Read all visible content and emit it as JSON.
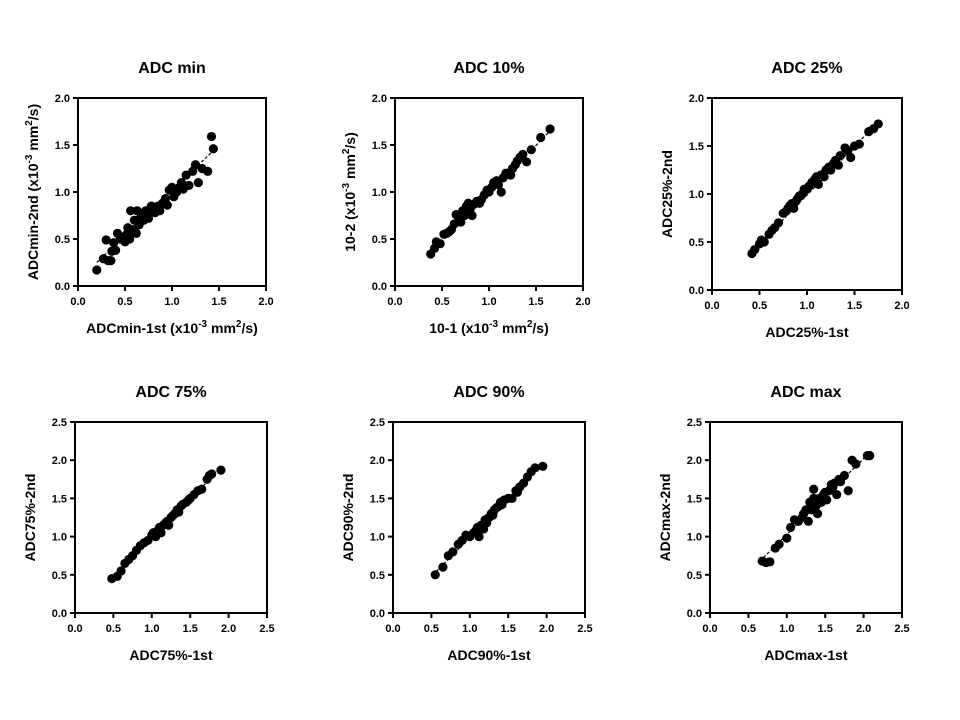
{
  "chart_data": [
    {
      "type": "scatter",
      "title": "ADC min",
      "xlabel": {
        "pre": "ADCmin-1st (x10",
        "sup": "-3",
        "mid": " mm",
        "sup2": "2",
        "post": "/s)"
      },
      "ylabel": {
        "pre": "ADCmin-2nd (x10",
        "sup": "-3",
        "mid": " mm",
        "sup2": "2",
        "post": "/s)"
      },
      "xlim": [
        0,
        2.0
      ],
      "ylim": [
        0,
        2.0
      ],
      "xticks": [
        "0.0",
        "0.5",
        "1.0",
        "1.5",
        "2.0"
      ],
      "yticks": [
        "0.0",
        "0.5",
        "1.0",
        "1.5",
        "2.0"
      ],
      "tick_values": [
        0,
        0.5,
        1.0,
        1.5,
        2.0
      ],
      "fit_line": [
        [
          0.2,
          0.25
        ],
        [
          1.45,
          1.45
        ]
      ],
      "points": [
        [
          0.2,
          0.17
        ],
        [
          0.27,
          0.29
        ],
        [
          0.3,
          0.49
        ],
        [
          0.32,
          0.27
        ],
        [
          0.35,
          0.27
        ],
        [
          0.36,
          0.37
        ],
        [
          0.38,
          0.46
        ],
        [
          0.4,
          0.38
        ],
        [
          0.42,
          0.56
        ],
        [
          0.45,
          0.5
        ],
        [
          0.47,
          0.52
        ],
        [
          0.5,
          0.47
        ],
        [
          0.52,
          0.55
        ],
        [
          0.53,
          0.62
        ],
        [
          0.55,
          0.5
        ],
        [
          0.56,
          0.8
        ],
        [
          0.58,
          0.6
        ],
        [
          0.6,
          0.7
        ],
        [
          0.6,
          0.58
        ],
        [
          0.62,
          0.56
        ],
        [
          0.63,
          0.8
        ],
        [
          0.65,
          0.65
        ],
        [
          0.67,
          0.73
        ],
        [
          0.7,
          0.7
        ],
        [
          0.72,
          0.8
        ],
        [
          0.73,
          0.77
        ],
        [
          0.75,
          0.72
        ],
        [
          0.78,
          0.85
        ],
        [
          0.8,
          0.82
        ],
        [
          0.82,
          0.78
        ],
        [
          0.85,
          0.85
        ],
        [
          0.87,
          0.8
        ],
        [
          0.9,
          0.88
        ],
        [
          0.93,
          0.93
        ],
        [
          0.95,
          0.86
        ],
        [
          0.97,
          1.02
        ],
        [
          1.0,
          1.05
        ],
        [
          1.02,
          0.95
        ],
        [
          1.05,
          1.0
        ],
        [
          1.08,
          1.05
        ],
        [
          1.1,
          1.1
        ],
        [
          1.12,
          1.03
        ],
        [
          1.15,
          1.18
        ],
        [
          1.18,
          1.07
        ],
        [
          1.22,
          1.22
        ],
        [
          1.25,
          1.29
        ],
        [
          1.28,
          1.1
        ],
        [
          1.32,
          1.25
        ],
        [
          1.38,
          1.22
        ],
        [
          1.42,
          1.59
        ],
        [
          1.44,
          1.46
        ]
      ]
    },
    {
      "type": "scatter",
      "title": "ADC 10%",
      "xlabel": {
        "pre": "10-1 (x10",
        "sup": "-3",
        "mid": " mm",
        "sup2": "2",
        "post": "/s)"
      },
      "ylabel": {
        "pre": "10-2 (x10",
        "sup": "-3",
        "mid": " mm",
        "sup2": "2",
        "post": "/s)"
      },
      "xlim": [
        0,
        2.0
      ],
      "ylim": [
        0,
        2.0
      ],
      "xticks": [
        "0.0",
        "0.5",
        "1.0",
        "1.5",
        "2.0"
      ],
      "yticks": [
        "0.0",
        "0.5",
        "1.0",
        "1.5",
        "2.0"
      ],
      "tick_values": [
        0,
        0.5,
        1.0,
        1.5,
        2.0
      ],
      "fit_line": [
        [
          0.38,
          0.35
        ],
        [
          1.65,
          1.65
        ]
      ],
      "points": [
        [
          0.38,
          0.34
        ],
        [
          0.42,
          0.4
        ],
        [
          0.44,
          0.47
        ],
        [
          0.48,
          0.45
        ],
        [
          0.52,
          0.55
        ],
        [
          0.55,
          0.56
        ],
        [
          0.58,
          0.58
        ],
        [
          0.6,
          0.6
        ],
        [
          0.63,
          0.66
        ],
        [
          0.65,
          0.76
        ],
        [
          0.68,
          0.72
        ],
        [
          0.7,
          0.68
        ],
        [
          0.72,
          0.8
        ],
        [
          0.74,
          0.75
        ],
        [
          0.76,
          0.85
        ],
        [
          0.78,
          0.88
        ],
        [
          0.8,
          0.82
        ],
        [
          0.82,
          0.75
        ],
        [
          0.84,
          0.87
        ],
        [
          0.87,
          0.9
        ],
        [
          0.9,
          0.88
        ],
        [
          0.92,
          0.92
        ],
        [
          0.95,
          0.97
        ],
        [
          0.98,
          1.02
        ],
        [
          1.0,
          1.0
        ],
        [
          1.03,
          1.05
        ],
        [
          1.05,
          1.1
        ],
        [
          1.08,
          1.12
        ],
        [
          1.1,
          1.08
        ],
        [
          1.13,
          1.0
        ],
        [
          1.15,
          1.15
        ],
        [
          1.18,
          1.2
        ],
        [
          1.2,
          1.2
        ],
        [
          1.23,
          1.18
        ],
        [
          1.25,
          1.25
        ],
        [
          1.28,
          1.29
        ],
        [
          1.3,
          1.33
        ],
        [
          1.33,
          1.37
        ],
        [
          1.36,
          1.4
        ],
        [
          1.4,
          1.32
        ],
        [
          1.45,
          1.45
        ],
        [
          1.55,
          1.58
        ],
        [
          1.65,
          1.67
        ]
      ]
    },
    {
      "type": "scatter",
      "title": "ADC 25%",
      "xlabel": {
        "pre": "ADC25%-1st"
      },
      "ylabel": {
        "pre": "ADC25%-2nd"
      },
      "xlim": [
        0,
        2.0
      ],
      "ylim": [
        0,
        2.0
      ],
      "xticks": [
        "0.0",
        "0.5",
        "1.0",
        "1.5",
        "2.0"
      ],
      "yticks": [
        "0.0",
        "0.5",
        "1.0",
        "1.5",
        "2.0"
      ],
      "tick_values": [
        0,
        0.5,
        1.0,
        1.5,
        2.0
      ],
      "fit_line": [
        [
          0.4,
          0.38
        ],
        [
          1.75,
          1.75
        ]
      ],
      "points": [
        [
          0.42,
          0.38
        ],
        [
          0.45,
          0.42
        ],
        [
          0.5,
          0.48
        ],
        [
          0.52,
          0.52
        ],
        [
          0.55,
          0.5
        ],
        [
          0.6,
          0.58
        ],
        [
          0.63,
          0.62
        ],
        [
          0.66,
          0.65
        ],
        [
          0.7,
          0.7
        ],
        [
          0.75,
          0.8
        ],
        [
          0.78,
          0.82
        ],
        [
          0.8,
          0.85
        ],
        [
          0.82,
          0.88
        ],
        [
          0.84,
          0.9
        ],
        [
          0.86,
          0.85
        ],
        [
          0.88,
          0.92
        ],
        [
          0.9,
          0.95
        ],
        [
          0.92,
          0.98
        ],
        [
          0.95,
          1.0
        ],
        [
          0.97,
          1.05
        ],
        [
          1.0,
          1.05
        ],
        [
          1.02,
          1.08
        ],
        [
          1.05,
          1.12
        ],
        [
          1.08,
          1.15
        ],
        [
          1.1,
          1.18
        ],
        [
          1.12,
          1.1
        ],
        [
          1.15,
          1.2
        ],
        [
          1.18,
          1.18
        ],
        [
          1.2,
          1.25
        ],
        [
          1.23,
          1.28
        ],
        [
          1.25,
          1.25
        ],
        [
          1.28,
          1.32
        ],
        [
          1.3,
          1.35
        ],
        [
          1.33,
          1.3
        ],
        [
          1.35,
          1.4
        ],
        [
          1.4,
          1.48
        ],
        [
          1.43,
          1.45
        ],
        [
          1.46,
          1.38
        ],
        [
          1.5,
          1.5
        ],
        [
          1.55,
          1.52
        ],
        [
          1.65,
          1.65
        ],
        [
          1.7,
          1.68
        ],
        [
          1.75,
          1.73
        ]
      ]
    },
    {
      "type": "scatter",
      "title": "ADC 75%",
      "xlabel": {
        "pre": "ADC75%-1st"
      },
      "ylabel": {
        "pre": "ADC75%-2nd"
      },
      "xlim": [
        0,
        2.5
      ],
      "ylim": [
        0,
        2.5
      ],
      "xticks": [
        "0.0",
        "0.5",
        "1.0",
        "1.5",
        "2.0",
        "2.5"
      ],
      "yticks": [
        "0.0",
        "0.5",
        "1.0",
        "1.5",
        "2.0",
        "2.5"
      ],
      "tick_values": [
        0,
        0.5,
        1.0,
        1.5,
        2.0,
        2.5
      ],
      "fit_line": [
        [
          0.48,
          0.45
        ],
        [
          1.9,
          1.9
        ]
      ],
      "points": [
        [
          0.48,
          0.45
        ],
        [
          0.55,
          0.48
        ],
        [
          0.6,
          0.55
        ],
        [
          0.65,
          0.65
        ],
        [
          0.7,
          0.7
        ],
        [
          0.75,
          0.75
        ],
        [
          0.8,
          0.82
        ],
        [
          0.85,
          0.88
        ],
        [
          0.9,
          0.92
        ],
        [
          0.95,
          0.95
        ],
        [
          1.0,
          1.02
        ],
        [
          1.02,
          1.05
        ],
        [
          1.05,
          1.0
        ],
        [
          1.08,
          1.08
        ],
        [
          1.1,
          1.12
        ],
        [
          1.12,
          1.05
        ],
        [
          1.15,
          1.15
        ],
        [
          1.18,
          1.18
        ],
        [
          1.2,
          1.2
        ],
        [
          1.22,
          1.15
        ],
        [
          1.25,
          1.25
        ],
        [
          1.28,
          1.28
        ],
        [
          1.3,
          1.3
        ],
        [
          1.33,
          1.35
        ],
        [
          1.35,
          1.32
        ],
        [
          1.38,
          1.4
        ],
        [
          1.4,
          1.42
        ],
        [
          1.45,
          1.45
        ],
        [
          1.48,
          1.48
        ],
        [
          1.5,
          1.5
        ],
        [
          1.55,
          1.55
        ],
        [
          1.6,
          1.6
        ],
        [
          1.65,
          1.62
        ],
        [
          1.72,
          1.75
        ],
        [
          1.75,
          1.8
        ],
        [
          1.78,
          1.82
        ],
        [
          1.9,
          1.87
        ]
      ]
    },
    {
      "type": "scatter",
      "title": "ADC 90%",
      "xlabel": {
        "pre": "ADC90%-1st"
      },
      "ylabel": {
        "pre": "ADC90%-2nd"
      },
      "xlim": [
        0,
        2.5
      ],
      "ylim": [
        0,
        2.5
      ],
      "xticks": [
        "0.0",
        "0.5",
        "1.0",
        "1.5",
        "2.0",
        "2.5"
      ],
      "yticks": [
        "0.0",
        "0.5",
        "1.0",
        "1.5",
        "2.0",
        "2.5"
      ],
      "tick_values": [
        0,
        0.5,
        1.0,
        1.5,
        2.0,
        2.5
      ],
      "fit_line": [
        [
          0.52,
          0.5
        ],
        [
          1.95,
          1.95
        ]
      ],
      "points": [
        [
          0.55,
          0.5
        ],
        [
          0.65,
          0.6
        ],
        [
          0.72,
          0.75
        ],
        [
          0.78,
          0.8
        ],
        [
          0.85,
          0.9
        ],
        [
          0.9,
          0.95
        ],
        [
          0.95,
          1.02
        ],
        [
          1.0,
          1.0
        ],
        [
          1.05,
          1.05
        ],
        [
          1.08,
          1.08
        ],
        [
          1.1,
          1.12
        ],
        [
          1.12,
          1.0
        ],
        [
          1.15,
          1.15
        ],
        [
          1.18,
          1.1
        ],
        [
          1.2,
          1.22
        ],
        [
          1.22,
          1.18
        ],
        [
          1.25,
          1.25
        ],
        [
          1.28,
          1.3
        ],
        [
          1.3,
          1.28
        ],
        [
          1.32,
          1.35
        ],
        [
          1.35,
          1.38
        ],
        [
          1.38,
          1.4
        ],
        [
          1.4,
          1.45
        ],
        [
          1.42,
          1.42
        ],
        [
          1.45,
          1.48
        ],
        [
          1.5,
          1.5
        ],
        [
          1.55,
          1.5
        ],
        [
          1.6,
          1.6
        ],
        [
          1.62,
          1.58
        ],
        [
          1.65,
          1.65
        ],
        [
          1.7,
          1.7
        ],
        [
          1.75,
          1.78
        ],
        [
          1.8,
          1.85
        ],
        [
          1.85,
          1.9
        ],
        [
          1.95,
          1.92
        ]
      ]
    },
    {
      "type": "scatter",
      "title": "ADC max",
      "xlabel": {
        "pre": "ADCmax-1st"
      },
      "ylabel": {
        "pre": "ADCmax-2nd"
      },
      "xlim": [
        0,
        2.5
      ],
      "ylim": [
        0,
        2.5
      ],
      "xticks": [
        "0.0",
        "0.5",
        "1.0",
        "1.5",
        "2.0",
        "2.5"
      ],
      "yticks": [
        "0.0",
        "0.5",
        "1.0",
        "1.5",
        "2.0",
        "2.5"
      ],
      "tick_values": [
        0,
        0.5,
        1.0,
        1.5,
        2.0,
        2.5
      ],
      "fit_line": [
        [
          0.65,
          0.68
        ],
        [
          2.1,
          2.12
        ]
      ],
      "points": [
        [
          0.68,
          0.68
        ],
        [
          0.73,
          0.66
        ],
        [
          0.78,
          0.67
        ],
        [
          0.85,
          0.85
        ],
        [
          0.9,
          0.9
        ],
        [
          1.0,
          0.98
        ],
        [
          1.05,
          1.12
        ],
        [
          1.1,
          1.22
        ],
        [
          1.15,
          1.2
        ],
        [
          1.2,
          1.25
        ],
        [
          1.22,
          1.3
        ],
        [
          1.25,
          1.35
        ],
        [
          1.28,
          1.2
        ],
        [
          1.3,
          1.45
        ],
        [
          1.32,
          1.35
        ],
        [
          1.35,
          1.5
        ],
        [
          1.35,
          1.62
        ],
        [
          1.38,
          1.4
        ],
        [
          1.4,
          1.3
        ],
        [
          1.42,
          1.5
        ],
        [
          1.45,
          1.45
        ],
        [
          1.48,
          1.55
        ],
        [
          1.5,
          1.58
        ],
        [
          1.52,
          1.48
        ],
        [
          1.55,
          1.6
        ],
        [
          1.58,
          1.68
        ],
        [
          1.6,
          1.65
        ],
        [
          1.62,
          1.7
        ],
        [
          1.65,
          1.55
        ],
        [
          1.68,
          1.75
        ],
        [
          1.7,
          1.72
        ],
        [
          1.75,
          1.8
        ],
        [
          1.8,
          1.6
        ],
        [
          1.85,
          2.0
        ],
        [
          1.9,
          1.95
        ],
        [
          2.05,
          2.06
        ],
        [
          2.08,
          2.06
        ]
      ]
    }
  ]
}
